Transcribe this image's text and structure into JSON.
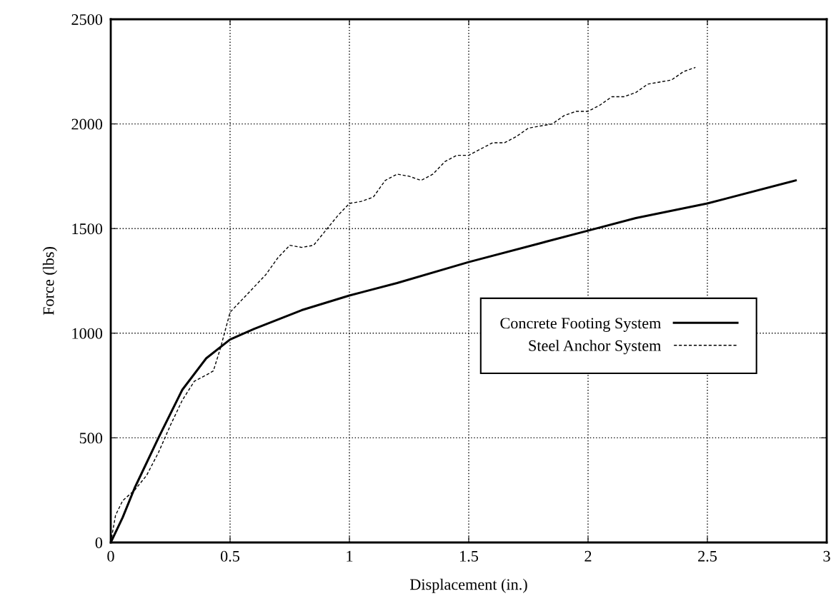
{
  "chart_data": {
    "type": "line",
    "xlabel": "Displacement (in.)",
    "ylabel": "Force (lbs)",
    "xlim": [
      0,
      3
    ],
    "ylim": [
      0,
      2500
    ],
    "xticks": [
      0,
      0.5,
      1,
      1.5,
      2,
      2.5,
      3
    ],
    "yticks": [
      0,
      500,
      1000,
      1500,
      2000,
      2500
    ],
    "grid": true,
    "legend": "right",
    "marker": "none",
    "series": [
      {
        "name": "Concrete Footing System",
        "color": "#000000",
        "line_style": "solid",
        "x": [
          0,
          0.05,
          0.1,
          0.2,
          0.3,
          0.4,
          0.5,
          0.6,
          0.8,
          1.0,
          1.2,
          1.5,
          1.8,
          2.0,
          2.2,
          2.5,
          2.87
        ],
        "values": [
          0,
          120,
          260,
          500,
          730,
          880,
          970,
          1020,
          1110,
          1180,
          1240,
          1340,
          1430,
          1490,
          1550,
          1620,
          1730
        ]
      },
      {
        "name": "Steel Anchor System",
        "color": "#000000",
        "line_style": "dashed",
        "x": [
          0,
          0.02,
          0.05,
          0.1,
          0.15,
          0.2,
          0.25,
          0.3,
          0.35,
          0.4,
          0.43,
          0.46,
          0.5,
          0.55,
          0.6,
          0.65,
          0.7,
          0.75,
          0.8,
          0.85,
          0.9,
          0.95,
          1.0,
          1.05,
          1.1,
          1.15,
          1.2,
          1.25,
          1.3,
          1.35,
          1.4,
          1.45,
          1.5,
          1.55,
          1.6,
          1.65,
          1.7,
          1.75,
          1.8,
          1.85,
          1.9,
          1.95,
          2.0,
          2.05,
          2.1,
          2.15,
          2.2,
          2.25,
          2.3,
          2.35,
          2.4,
          2.45
        ],
        "values": [
          0,
          130,
          200,
          250,
          320,
          430,
          560,
          680,
          770,
          800,
          820,
          930,
          1100,
          1160,
          1220,
          1280,
          1360,
          1420,
          1410,
          1420,
          1490,
          1560,
          1620,
          1630,
          1650,
          1730,
          1760,
          1750,
          1730,
          1760,
          1820,
          1850,
          1850,
          1880,
          1910,
          1910,
          1940,
          1980,
          1990,
          2000,
          2040,
          2060,
          2060,
          2090,
          2130,
          2130,
          2150,
          2190,
          2200,
          2210,
          2250,
          2270
        ]
      }
    ]
  }
}
